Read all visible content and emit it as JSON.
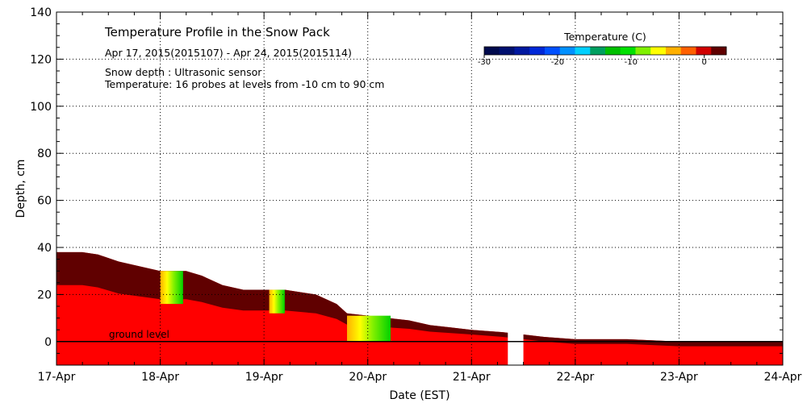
{
  "chart_data": {
    "type": "heatmap",
    "title": "Temperature Profile in the Snow Pack",
    "subtitle": "Apr 17, 2015(2015107) - Apr 24, 2015(2015114)",
    "notes": [
      "Snow depth : Ultrasonic sensor",
      "Temperature: 16 probes at levels from -10 cm to 90 cm"
    ],
    "xlabel": "Date (EST)",
    "ylabel": "Depth, cm",
    "x_ticks": [
      "17-Apr",
      "18-Apr",
      "19-Apr",
      "20-Apr",
      "21-Apr",
      "22-Apr",
      "23-Apr",
      "24-Apr"
    ],
    "xlim_days": [
      0,
      7
    ],
    "ylim": [
      -10,
      140
    ],
    "y_ticks": [
      0,
      20,
      40,
      60,
      80,
      100,
      120,
      140
    ],
    "grid": true,
    "ground_level_label": "ground level",
    "colorbar": {
      "title": "Temperature (C)",
      "range": [
        -30,
        3
      ],
      "tick_labels": [
        {
          "value": -30,
          "label": "-30"
        },
        {
          "value": -20,
          "label": "-20"
        },
        {
          "value": -10,
          "label": "-10"
        },
        {
          "value": 0,
          "label": "0"
        }
      ],
      "colors": [
        "#000a4d",
        "#001070",
        "#0018a0",
        "#0028d8",
        "#0050ff",
        "#0090ff",
        "#00d0ff",
        "#00a060",
        "#00c000",
        "#00e000",
        "#80f000",
        "#ffff00",
        "#ffb000",
        "#ff6000",
        "#d00000",
        "#600000"
      ]
    },
    "snow_depth": [
      {
        "day": 0.0,
        "depth": 38
      },
      {
        "day": 0.25,
        "depth": 38
      },
      {
        "day": 0.4,
        "depth": 37
      },
      {
        "day": 0.6,
        "depth": 34
      },
      {
        "day": 0.8,
        "depth": 32
      },
      {
        "day": 1.0,
        "depth": 30
      },
      {
        "day": 1.25,
        "depth": 30
      },
      {
        "day": 1.4,
        "depth": 28
      },
      {
        "day": 1.6,
        "depth": 24
      },
      {
        "day": 1.8,
        "depth": 22
      },
      {
        "day": 2.0,
        "depth": 22
      },
      {
        "day": 2.2,
        "depth": 22
      },
      {
        "day": 2.5,
        "depth": 20
      },
      {
        "day": 2.7,
        "depth": 16
      },
      {
        "day": 2.8,
        "depth": 12
      },
      {
        "day": 3.0,
        "depth": 11
      },
      {
        "day": 3.2,
        "depth": 10
      },
      {
        "day": 3.4,
        "depth": 9
      },
      {
        "day": 3.6,
        "depth": 7
      },
      {
        "day": 3.8,
        "depth": 6
      },
      {
        "day": 4.0,
        "depth": 5
      },
      {
        "day": 4.3,
        "depth": 4
      },
      {
        "day": 4.5,
        "depth": 3
      },
      {
        "day": 4.7,
        "depth": 2
      },
      {
        "day": 5.0,
        "depth": 1
      },
      {
        "day": 5.5,
        "depth": 1
      },
      {
        "day": 6.0,
        "depth": 0
      },
      {
        "day": 6.5,
        "depth": 0
      },
      {
        "day": 7.0,
        "depth": 0
      }
    ],
    "warm_patches": [
      {
        "start_day": 1.0,
        "end_day": 1.22,
        "bottom": 16,
        "top": 30
      },
      {
        "start_day": 2.05,
        "end_day": 2.2,
        "bottom": 12,
        "top": 22
      },
      {
        "start_day": 2.8,
        "end_day": 3.22,
        "bottom": 0,
        "top": 11
      }
    ],
    "data_gap": {
      "start_day": 4.35,
      "end_day": 4.5
    }
  }
}
